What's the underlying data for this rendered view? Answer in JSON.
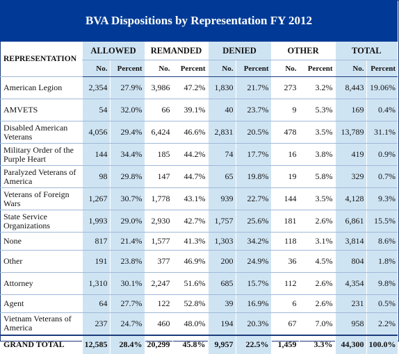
{
  "title": "BVA Dispositions by Representation FY 2012",
  "headers": {
    "representation": "REPRESENTATION",
    "groups": [
      "ALLOWED",
      "REMANDED",
      "DENIED",
      "OTHER",
      "TOTAL"
    ],
    "no": "No.",
    "percent": "Percent"
  },
  "rows": [
    {
      "name": "American Legion",
      "cells": [
        "2,354",
        "27.9%",
        "3,986",
        "47.2%",
        "1,830",
        "21.7%",
        "273",
        "3.2%",
        "8,443",
        "19.06%"
      ]
    },
    {
      "name": "AMVETS",
      "cells": [
        "54",
        "32.0%",
        "66",
        "39.1%",
        "40",
        "23.7%",
        "9",
        "5.3%",
        "169",
        "0.4%"
      ]
    },
    {
      "name": "Disabled American Veterans",
      "cells": [
        "4,056",
        "29.4%",
        "6,424",
        "46.6%",
        "2,831",
        "20.5%",
        "478",
        "3.5%",
        "13,789",
        "31.1%"
      ]
    },
    {
      "name": "Military Order of the Purple Heart",
      "cells": [
        "144",
        "34.4%",
        "185",
        "44.2%",
        "74",
        "17.7%",
        "16",
        "3.8%",
        "419",
        "0.9%"
      ]
    },
    {
      "name": "Paralyzed Veterans of America",
      "cells": [
        "98",
        "29.8%",
        "147",
        "44.7%",
        "65",
        "19.8%",
        "19",
        "5.8%",
        "329",
        "0.7%"
      ]
    },
    {
      "name": "Veterans of Foreign Wars",
      "cells": [
        "1,267",
        "30.7%",
        "1,778",
        "43.1%",
        "939",
        "22.7%",
        "144",
        "3.5%",
        "4,128",
        "9.3%"
      ]
    },
    {
      "name": "State Service Organizations",
      "cells": [
        "1,993",
        "29.0%",
        "2,930",
        "42.7%",
        "1,757",
        "25.6%",
        "181",
        "2.6%",
        "6,861",
        "15.5%"
      ]
    },
    {
      "name": "None",
      "cells": [
        "817",
        "21.4%",
        "1,577",
        "41.3%",
        "1,303",
        "34.2%",
        "118",
        "3.1%",
        "3,814",
        "8.6%"
      ]
    },
    {
      "name": "Other",
      "cells": [
        "191",
        "23.8%",
        "377",
        "46.9%",
        "200",
        "24.9%",
        "36",
        "4.5%",
        "804",
        "1.8%"
      ]
    },
    {
      "name": "Attorney",
      "cells": [
        "1,310",
        "30.1%",
        "2,247",
        "51.6%",
        "685",
        "15.7%",
        "112",
        "2.6%",
        "4,354",
        "9.8%"
      ]
    },
    {
      "name": "Agent",
      "cells": [
        "64",
        "27.7%",
        "122",
        "52.8%",
        "39",
        "16.9%",
        "6",
        "2.6%",
        "231",
        "0.5%"
      ]
    },
    {
      "name": "Vietnam Veterans of America",
      "cells": [
        "237",
        "24.7%",
        "460",
        "48.0%",
        "194",
        "20.3%",
        "67",
        "7.0%",
        "958",
        "2.2%"
      ]
    }
  ],
  "grand_total": {
    "name": "GRAND TOTAL",
    "cells": [
      "12,585",
      "28.4%",
      "20,299",
      "45.8%",
      "9,957",
      "22.5%",
      "1,459",
      "3.3%",
      "44,300",
      "100.0%"
    ]
  },
  "colors": {
    "title_bg": "#003a96",
    "blue_col": "#cfe4f3",
    "light_col": "#ddeef8"
  }
}
